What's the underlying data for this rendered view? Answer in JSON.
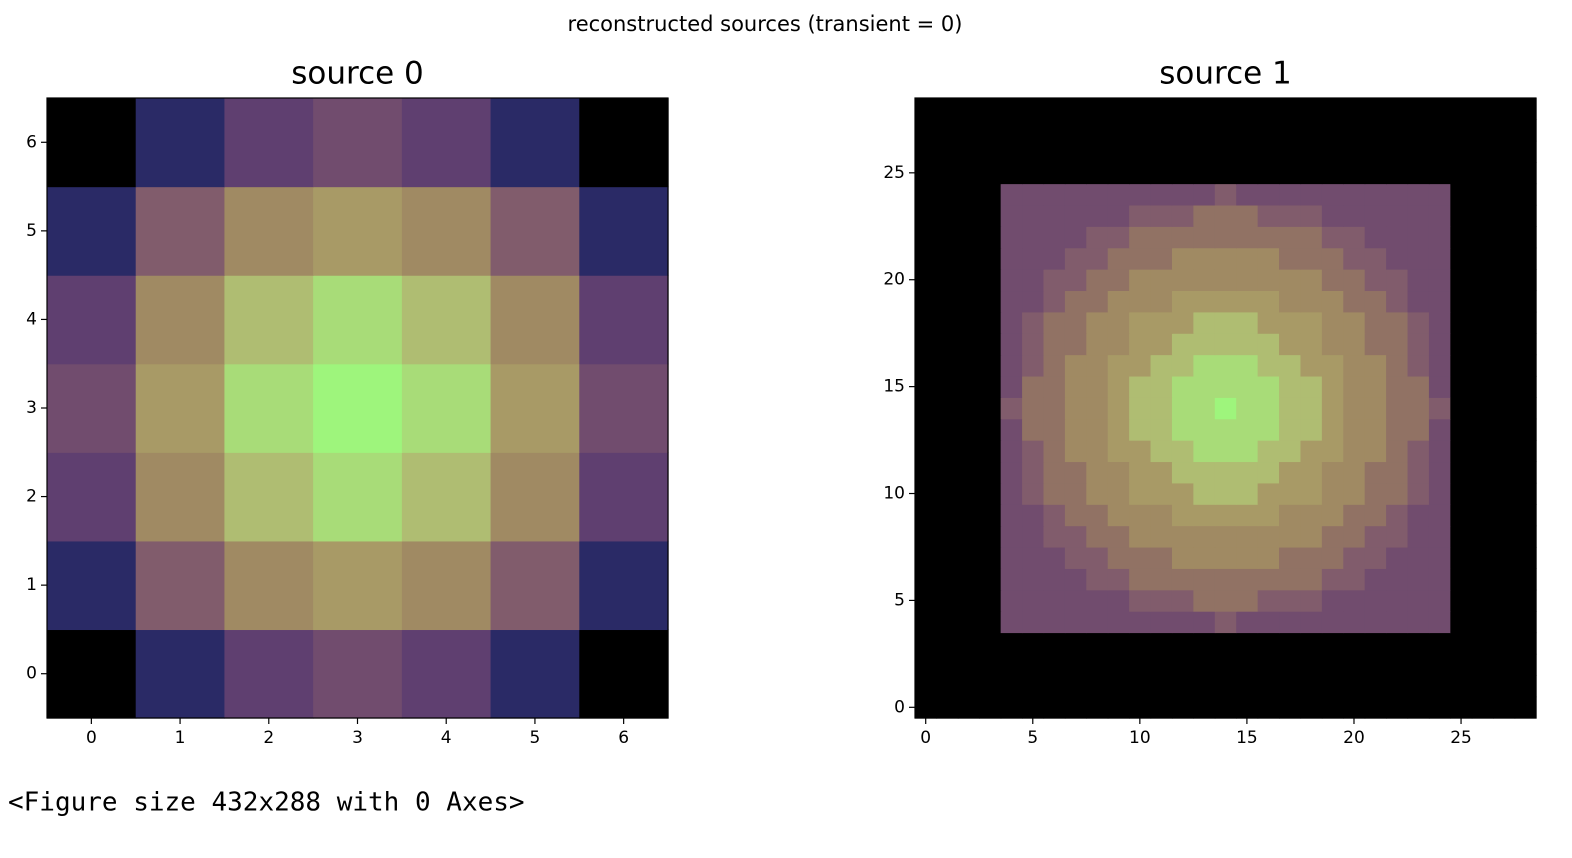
{
  "figure_title": "reconstructed sources (transient = 0)",
  "output_text": "<Figure size 432x288 with 0 Axes>",
  "colormap": [
    "#000000",
    "#2a2a66",
    "#5f3f70",
    "#714c6e",
    "#815c6c",
    "#917264",
    "#a08a63",
    "#a89a66",
    "#afbd72",
    "#a8dc78",
    "#9ef57c"
  ],
  "chart_data": [
    {
      "type": "heatmap",
      "title": "source 0",
      "xlim": [
        -0.5,
        6.5
      ],
      "ylim": [
        -0.5,
        6.5
      ],
      "xticks": [
        0,
        1,
        2,
        3,
        4,
        5,
        6
      ],
      "yticks": [
        0,
        1,
        2,
        3,
        4,
        5,
        6
      ],
      "z": [
        [
          0,
          1,
          2,
          3,
          2,
          1,
          0
        ],
        [
          1,
          4,
          6,
          7,
          6,
          4,
          1
        ],
        [
          2,
          6,
          8,
          9,
          8,
          6,
          2
        ],
        [
          3,
          7,
          9,
          10,
          9,
          7,
          3
        ],
        [
          2,
          6,
          8,
          9,
          8,
          6,
          2
        ],
        [
          1,
          4,
          6,
          7,
          6,
          4,
          1
        ],
        [
          0,
          1,
          2,
          3,
          2,
          1,
          0
        ]
      ]
    },
    {
      "type": "heatmap",
      "title": "source 1",
      "xlim": [
        -0.5,
        28.5
      ],
      "ylim": [
        -0.5,
        28.5
      ],
      "xticks": [
        0,
        5,
        10,
        15,
        20,
        25
      ],
      "yticks": [
        0,
        5,
        10,
        15,
        20,
        25
      ],
      "z": [
        [
          0,
          0,
          0,
          0,
          0,
          0,
          0,
          0,
          0,
          0,
          0,
          0,
          0,
          0,
          0,
          0,
          0,
          0,
          0,
          0,
          0,
          0,
          0,
          0,
          0,
          0,
          0,
          0,
          0
        ],
        [
          0,
          0,
          0,
          0,
          0,
          0,
          0,
          0,
          0,
          0,
          0,
          0,
          0,
          0,
          0,
          0,
          0,
          0,
          0,
          0,
          0,
          0,
          0,
          0,
          0,
          0,
          0,
          0,
          0
        ],
        [
          0,
          0,
          0,
          0,
          0,
          0,
          0,
          0,
          0,
          0,
          0,
          0,
          0,
          0,
          0,
          0,
          0,
          0,
          0,
          0,
          0,
          0,
          0,
          0,
          0,
          0,
          0,
          0,
          0
        ],
        [
          0,
          0,
          0,
          0,
          0,
          0,
          0,
          0,
          0,
          0,
          0,
          0,
          0,
          0,
          0,
          0,
          0,
          0,
          0,
          0,
          0,
          0,
          0,
          0,
          0,
          0,
          0,
          0,
          0
        ],
        [
          0,
          0,
          0,
          0,
          3,
          3,
          3,
          3,
          3,
          3,
          3,
          3,
          3,
          3,
          4,
          3,
          3,
          3,
          3,
          3,
          3,
          3,
          3,
          3,
          3,
          0,
          0,
          0,
          0
        ],
        [
          0,
          0,
          0,
          0,
          3,
          3,
          3,
          3,
          3,
          3,
          4,
          4,
          4,
          5,
          5,
          5,
          4,
          4,
          4,
          3,
          3,
          3,
          3,
          3,
          3,
          0,
          0,
          0,
          0
        ],
        [
          0,
          0,
          0,
          0,
          3,
          3,
          3,
          3,
          4,
          4,
          5,
          5,
          5,
          5,
          5,
          5,
          5,
          5,
          5,
          4,
          4,
          3,
          3,
          3,
          3,
          0,
          0,
          0,
          0
        ],
        [
          0,
          0,
          0,
          0,
          3,
          3,
          3,
          4,
          4,
          5,
          5,
          5,
          6,
          6,
          6,
          6,
          6,
          5,
          5,
          5,
          4,
          4,
          3,
          3,
          3,
          0,
          0,
          0,
          0
        ],
        [
          0,
          0,
          0,
          0,
          3,
          3,
          4,
          4,
          5,
          5,
          6,
          6,
          6,
          6,
          6,
          6,
          6,
          6,
          6,
          5,
          5,
          4,
          4,
          3,
          3,
          0,
          0,
          0,
          0
        ],
        [
          0,
          0,
          0,
          0,
          3,
          3,
          4,
          5,
          5,
          6,
          6,
          6,
          7,
          7,
          7,
          7,
          7,
          6,
          6,
          6,
          5,
          5,
          4,
          3,
          3,
          0,
          0,
          0,
          0
        ],
        [
          0,
          0,
          0,
          0,
          3,
          4,
          5,
          5,
          6,
          6,
          7,
          7,
          7,
          8,
          8,
          8,
          7,
          7,
          7,
          6,
          6,
          5,
          5,
          4,
          3,
          0,
          0,
          0,
          0
        ],
        [
          0,
          0,
          0,
          0,
          3,
          4,
          5,
          5,
          6,
          6,
          7,
          7,
          8,
          8,
          8,
          8,
          8,
          7,
          7,
          6,
          6,
          5,
          5,
          4,
          3,
          0,
          0,
          0,
          0
        ],
        [
          0,
          0,
          0,
          0,
          3,
          4,
          5,
          6,
          6,
          7,
          7,
          8,
          8,
          9,
          9,
          9,
          8,
          8,
          7,
          7,
          6,
          6,
          5,
          4,
          3,
          0,
          0,
          0,
          0
        ],
        [
          0,
          0,
          0,
          0,
          3,
          5,
          5,
          6,
          6,
          7,
          8,
          8,
          9,
          9,
          9,
          9,
          9,
          8,
          8,
          7,
          6,
          6,
          5,
          5,
          3,
          0,
          0,
          0,
          0
        ],
        [
          0,
          0,
          0,
          0,
          4,
          5,
          5,
          6,
          6,
          7,
          8,
          8,
          9,
          9,
          10,
          9,
          9,
          8,
          8,
          7,
          6,
          6,
          5,
          5,
          4,
          0,
          0,
          0,
          0
        ],
        [
          0,
          0,
          0,
          0,
          3,
          5,
          5,
          6,
          6,
          7,
          8,
          8,
          9,
          9,
          9,
          9,
          9,
          8,
          8,
          7,
          6,
          6,
          5,
          5,
          3,
          0,
          0,
          0,
          0
        ],
        [
          0,
          0,
          0,
          0,
          3,
          4,
          5,
          6,
          6,
          7,
          7,
          8,
          8,
          9,
          9,
          9,
          8,
          8,
          7,
          7,
          6,
          6,
          5,
          4,
          3,
          0,
          0,
          0,
          0
        ],
        [
          0,
          0,
          0,
          0,
          3,
          4,
          5,
          5,
          6,
          6,
          7,
          7,
          8,
          8,
          8,
          8,
          8,
          7,
          7,
          6,
          6,
          5,
          5,
          4,
          3,
          0,
          0,
          0,
          0
        ],
        [
          0,
          0,
          0,
          0,
          3,
          4,
          5,
          5,
          6,
          6,
          7,
          7,
          7,
          8,
          8,
          8,
          7,
          7,
          7,
          6,
          6,
          5,
          5,
          4,
          3,
          0,
          0,
          0,
          0
        ],
        [
          0,
          0,
          0,
          0,
          3,
          3,
          4,
          5,
          5,
          6,
          6,
          6,
          7,
          7,
          7,
          7,
          7,
          6,
          6,
          6,
          5,
          5,
          4,
          3,
          3,
          0,
          0,
          0,
          0
        ],
        [
          0,
          0,
          0,
          0,
          3,
          3,
          4,
          4,
          5,
          5,
          6,
          6,
          6,
          6,
          6,
          6,
          6,
          6,
          6,
          5,
          5,
          4,
          4,
          3,
          3,
          0,
          0,
          0,
          0
        ],
        [
          0,
          0,
          0,
          0,
          3,
          3,
          3,
          4,
          4,
          5,
          5,
          5,
          6,
          6,
          6,
          6,
          6,
          5,
          5,
          5,
          4,
          4,
          3,
          3,
          3,
          0,
          0,
          0,
          0
        ],
        [
          0,
          0,
          0,
          0,
          3,
          3,
          3,
          3,
          4,
          4,
          5,
          5,
          5,
          5,
          5,
          5,
          5,
          5,
          5,
          4,
          4,
          3,
          3,
          3,
          3,
          0,
          0,
          0,
          0
        ],
        [
          0,
          0,
          0,
          0,
          3,
          3,
          3,
          3,
          3,
          3,
          4,
          4,
          4,
          5,
          5,
          5,
          4,
          4,
          4,
          3,
          3,
          3,
          3,
          3,
          3,
          0,
          0,
          0,
          0
        ],
        [
          0,
          0,
          0,
          0,
          3,
          3,
          3,
          3,
          3,
          3,
          3,
          3,
          3,
          3,
          4,
          3,
          3,
          3,
          3,
          3,
          3,
          3,
          3,
          3,
          3,
          0,
          0,
          0,
          0
        ],
        [
          0,
          0,
          0,
          0,
          0,
          0,
          0,
          0,
          0,
          0,
          0,
          0,
          0,
          0,
          0,
          0,
          0,
          0,
          0,
          0,
          0,
          0,
          0,
          0,
          0,
          0,
          0,
          0,
          0
        ],
        [
          0,
          0,
          0,
          0,
          0,
          0,
          0,
          0,
          0,
          0,
          0,
          0,
          0,
          0,
          0,
          0,
          0,
          0,
          0,
          0,
          0,
          0,
          0,
          0,
          0,
          0,
          0,
          0,
          0
        ],
        [
          0,
          0,
          0,
          0,
          0,
          0,
          0,
          0,
          0,
          0,
          0,
          0,
          0,
          0,
          0,
          0,
          0,
          0,
          0,
          0,
          0,
          0,
          0,
          0,
          0,
          0,
          0,
          0,
          0
        ],
        [
          0,
          0,
          0,
          0,
          0,
          0,
          0,
          0,
          0,
          0,
          0,
          0,
          0,
          0,
          0,
          0,
          0,
          0,
          0,
          0,
          0,
          0,
          0,
          0,
          0,
          0,
          0,
          0,
          0
        ]
      ]
    }
  ]
}
